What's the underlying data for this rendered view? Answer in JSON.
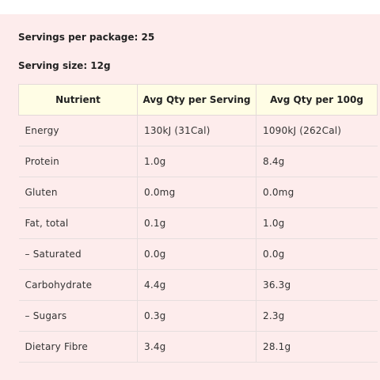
{
  "servings": {
    "label": "Servings per package: 25"
  },
  "serving_size": {
    "label": "Serving size: 12g"
  },
  "table": {
    "headers": [
      "Nutrient",
      "Avg Qty per Serving",
      "Avg Qty per 100g"
    ],
    "rows": [
      [
        "Energy",
        "130kJ (31Cal)",
        "1090kJ (262Cal)"
      ],
      [
        "Protein",
        "1.0g",
        "8.4g"
      ],
      [
        "Gluten",
        "0.0mg",
        "0.0mg"
      ],
      [
        "Fat, total",
        "0.1g",
        "1.0g"
      ],
      [
        "– Saturated",
        "0.0g",
        "0.0g"
      ],
      [
        "Carbohydrate",
        "4.4g",
        "36.3g"
      ],
      [
        "– Sugars",
        "0.3g",
        "2.3g"
      ],
      [
        "Dietary Fibre",
        "3.4g",
        "28.1g"
      ]
    ]
  },
  "colors": {
    "background": "#fdecec",
    "header_bg": "#fffde5"
  }
}
